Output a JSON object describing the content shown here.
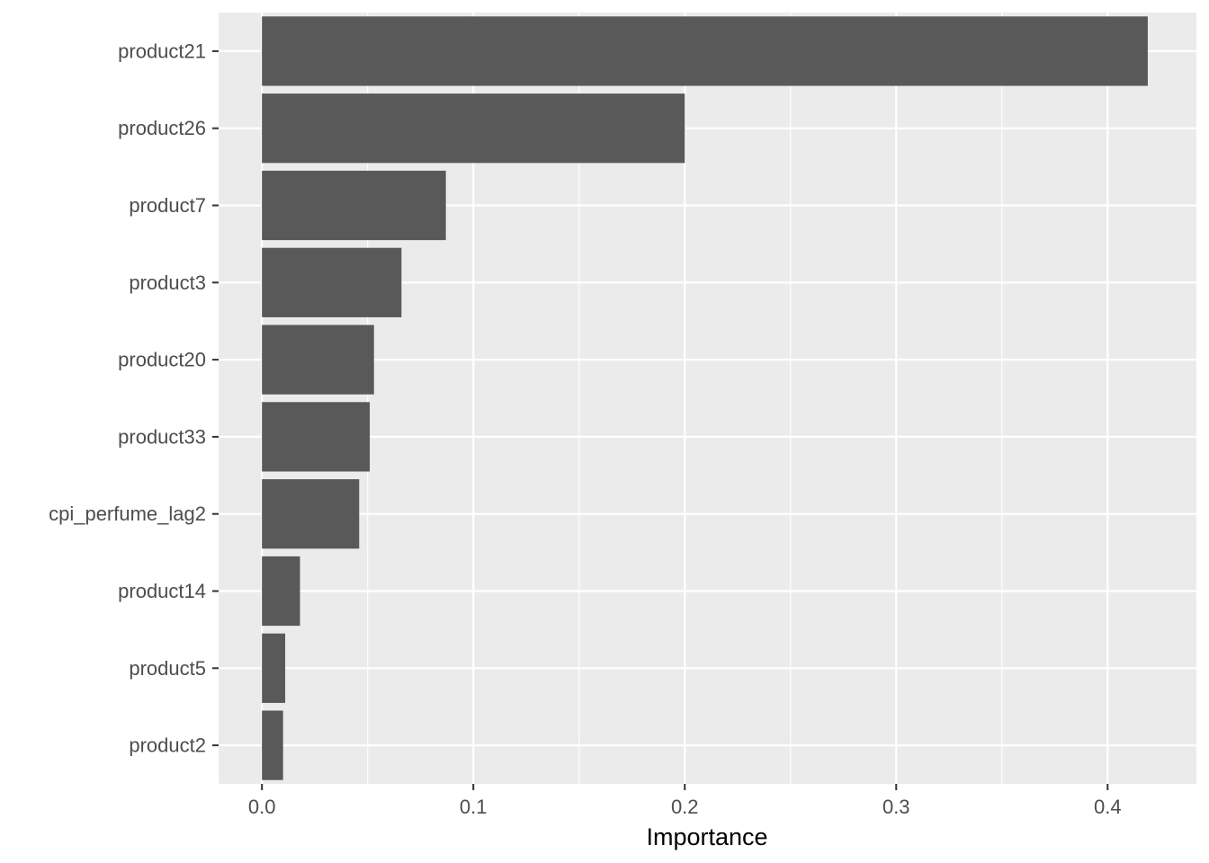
{
  "chart_data": {
    "type": "bar",
    "orientation": "horizontal",
    "categories": [
      "product21",
      "product26",
      "product7",
      "product3",
      "product20",
      "product33",
      "cpi_perfume_lag2",
      "product14",
      "product5",
      "product2"
    ],
    "values": [
      0.419,
      0.2,
      0.087,
      0.066,
      0.053,
      0.051,
      0.046,
      0.018,
      0.011,
      0.01
    ],
    "xlabel": "Importance",
    "ylabel": "",
    "xlim": [
      -0.0205,
      0.442
    ],
    "xticks": [
      0.0,
      0.1,
      0.2,
      0.3,
      0.4
    ],
    "xtick_labels": [
      "0.0",
      "0.1",
      "0.2",
      "0.3",
      "0.4"
    ],
    "grid": true,
    "colors": {
      "panel_background": "#ebebeb",
      "grid_line": "#ffffff",
      "bar_fill": "#595959",
      "tick_text": "#4d4d4d",
      "tick_mark": "#333333"
    }
  }
}
